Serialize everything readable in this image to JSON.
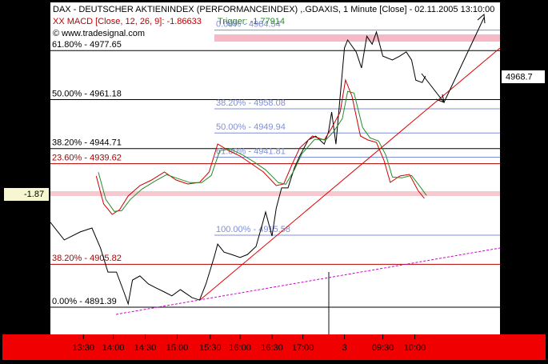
{
  "chart_data": {
    "type": "line",
    "title": "DAX - DEUTSCHER AKTIENINDEX (PERFORMANCEINDEX) ,.GDAXIS, 1 Minute [Close] - 02.11.2005 13:10:00",
    "subtitle": "XX MACD [Close, 12, 26, 9]: -1.86633",
    "trigger_label": "Trigger: -1.77914",
    "credit": "© www.tradesignal.com",
    "last_price_label": "4968.7",
    "macd_label": "-1.87",
    "xlim": [
      0,
      422
    ],
    "xticks": [
      {
        "value": 31,
        "label": "13:30"
      },
      {
        "value": 59,
        "label": "14:00"
      },
      {
        "value": 89,
        "label": "14:30"
      },
      {
        "value": 119,
        "label": "15:00"
      },
      {
        "value": 150,
        "label": "15:30"
      },
      {
        "value": 178,
        "label": "16:00"
      },
      {
        "value": 208,
        "label": "16:30"
      },
      {
        "value": 237,
        "label": "17:00"
      },
      {
        "value": 276,
        "label": "3"
      },
      {
        "value": 312,
        "label": "09:30"
      },
      {
        "value": 342,
        "label": "10:00"
      }
    ],
    "ylim": [
      4882.25,
      4993.3
    ],
    "y2lim": [
      -19.37,
      21.93
    ],
    "levels": [
      {
        "value": 4977.65,
        "label": "61.80% - 4977.65",
        "color": "#000000",
        "set": "left"
      },
      {
        "value": 4961.18,
        "label": "50.00% - 4961.18",
        "color": "#000000",
        "set": "left"
      },
      {
        "value": 4944.71,
        "label": "38.20% - 4944.71",
        "color": "#000000",
        "set": "left"
      },
      {
        "value": 4939.62,
        "label": "23.60% - 4939.62",
        "color": "#b00000",
        "set": "left"
      },
      {
        "value": 4905.82,
        "label": "38.20% - 4905.82",
        "color": "#b00000",
        "set": "left"
      },
      {
        "value": 4891.39,
        "label": "0.00% - 4891.39",
        "color": "#000000",
        "set": "left"
      },
      {
        "value": 4984.54,
        "label": "0.00% - 4984.54",
        "color": "#7f8fd8",
        "set": "right"
      },
      {
        "value": 4958.08,
        "label": "38.20% - 4958.08",
        "color": "#7f8fd8",
        "set": "right"
      },
      {
        "value": 4949.94,
        "label": "50.00% - 4949.94",
        "color": "#7f8fd8",
        "set": "right"
      },
      {
        "value": 4941.81,
        "label": "61.80% - 4941.81",
        "color": "#7f8fd8",
        "set": "right"
      },
      {
        "value": 4915.58,
        "label": "100.00% - 4915.58",
        "color": "#7f8fd8",
        "set": "right"
      }
    ],
    "series": [
      {
        "name": "DAX",
        "color": "#000000",
        "x": [
          0,
          13,
          28,
          39,
          47,
          54,
          62,
          69,
          73,
          77,
          84,
          92,
          99,
          107,
          114,
          122,
          133,
          140,
          146,
          154,
          157,
          163,
          170,
          178,
          185,
          193,
          199,
          202,
          208,
          212,
          217,
          223,
          229,
          234,
          242,
          249,
          257,
          261,
          264,
          268,
          272,
          276,
          279,
          287,
          292,
          297,
          302,
          306,
          312,
          321,
          328,
          334,
          339,
          343,
          349,
          352
        ],
        "values": [
          4919.9,
          4914.0,
          4916.7,
          4918.0,
          4911.3,
          4903.2,
          4903.2,
          4896.5,
          4892.5,
          4900.5,
          4901.9,
          4899.2,
          4897.9,
          4896.5,
          4895.2,
          4897.3,
          4894.6,
          4893.8,
          4899.2,
          4908.6,
          4912.6,
          4909.9,
          4909.1,
          4908.1,
          4909.1,
          4911.8,
          4919.4,
          4923.4,
          4915.3,
          4924.7,
          4931.5,
          4931.5,
          4938.2,
          4942.2,
          4947.6,
          4948.9,
          4946.2,
          4950.3,
          4957.0,
          4946.2,
          4962.4,
          4978.5,
          4981.2,
          4977.2,
          4971.8,
          4982.5,
          4979.8,
          4983.9,
          4975.8,
          4974.5,
          4975.8,
          4977.2,
          4974.5,
          4967.7,
          4966.9,
          4969.1
        ]
      },
      {
        "name": "MACD",
        "color": "#d00000",
        "axis": "y2",
        "x": [
          43,
          50,
          58,
          65,
          73,
          84,
          95,
          107,
          118,
          129,
          140,
          149,
          157,
          167,
          178,
          189,
          200,
          212,
          219,
          227,
          234,
          246,
          257,
          264,
          272,
          277,
          283,
          291,
          298,
          306,
          313,
          319,
          328,
          337,
          345,
          351
        ],
        "values": [
          0.43,
          -3.07,
          -4.37,
          -3.77,
          -2.07,
          -0.77,
          -0.07,
          0.93,
          -0.07,
          -0.57,
          -0.37,
          0.93,
          4.43,
          3.63,
          2.93,
          1.93,
          0.93,
          -0.77,
          -0.57,
          1.93,
          3.93,
          5.43,
          4.93,
          6.43,
          8.43,
          12.43,
          10.43,
          5.43,
          4.93,
          4.63,
          2.43,
          -0.37,
          0.43,
          0.63,
          -1.37,
          -2.37
        ]
      },
      {
        "name": "Trigger",
        "color": "#2a8a2a",
        "axis": "y2",
        "x": [
          45,
          52,
          60,
          67,
          75,
          86,
          97,
          109,
          120,
          131,
          142,
          151,
          159,
          169,
          180,
          191,
          202,
          214,
          221,
          229,
          236,
          248,
          259,
          266,
          274,
          279,
          285,
          293,
          300,
          308,
          315,
          321,
          330,
          339,
          347,
          353
        ],
        "values": [
          0.9,
          -2.5,
          -4.0,
          -3.9,
          -2.5,
          -1.2,
          -0.3,
          0.6,
          0.1,
          -0.4,
          -0.4,
          0.5,
          3.6,
          3.8,
          3.1,
          2.2,
          1.2,
          -0.4,
          -0.6,
          1.2,
          3.2,
          5.0,
          5.0,
          6.0,
          7.6,
          11.0,
          10.8,
          6.5,
          5.2,
          4.8,
          3.0,
          0.3,
          0.2,
          0.5,
          -0.9,
          -2.0
        ]
      }
    ]
  }
}
